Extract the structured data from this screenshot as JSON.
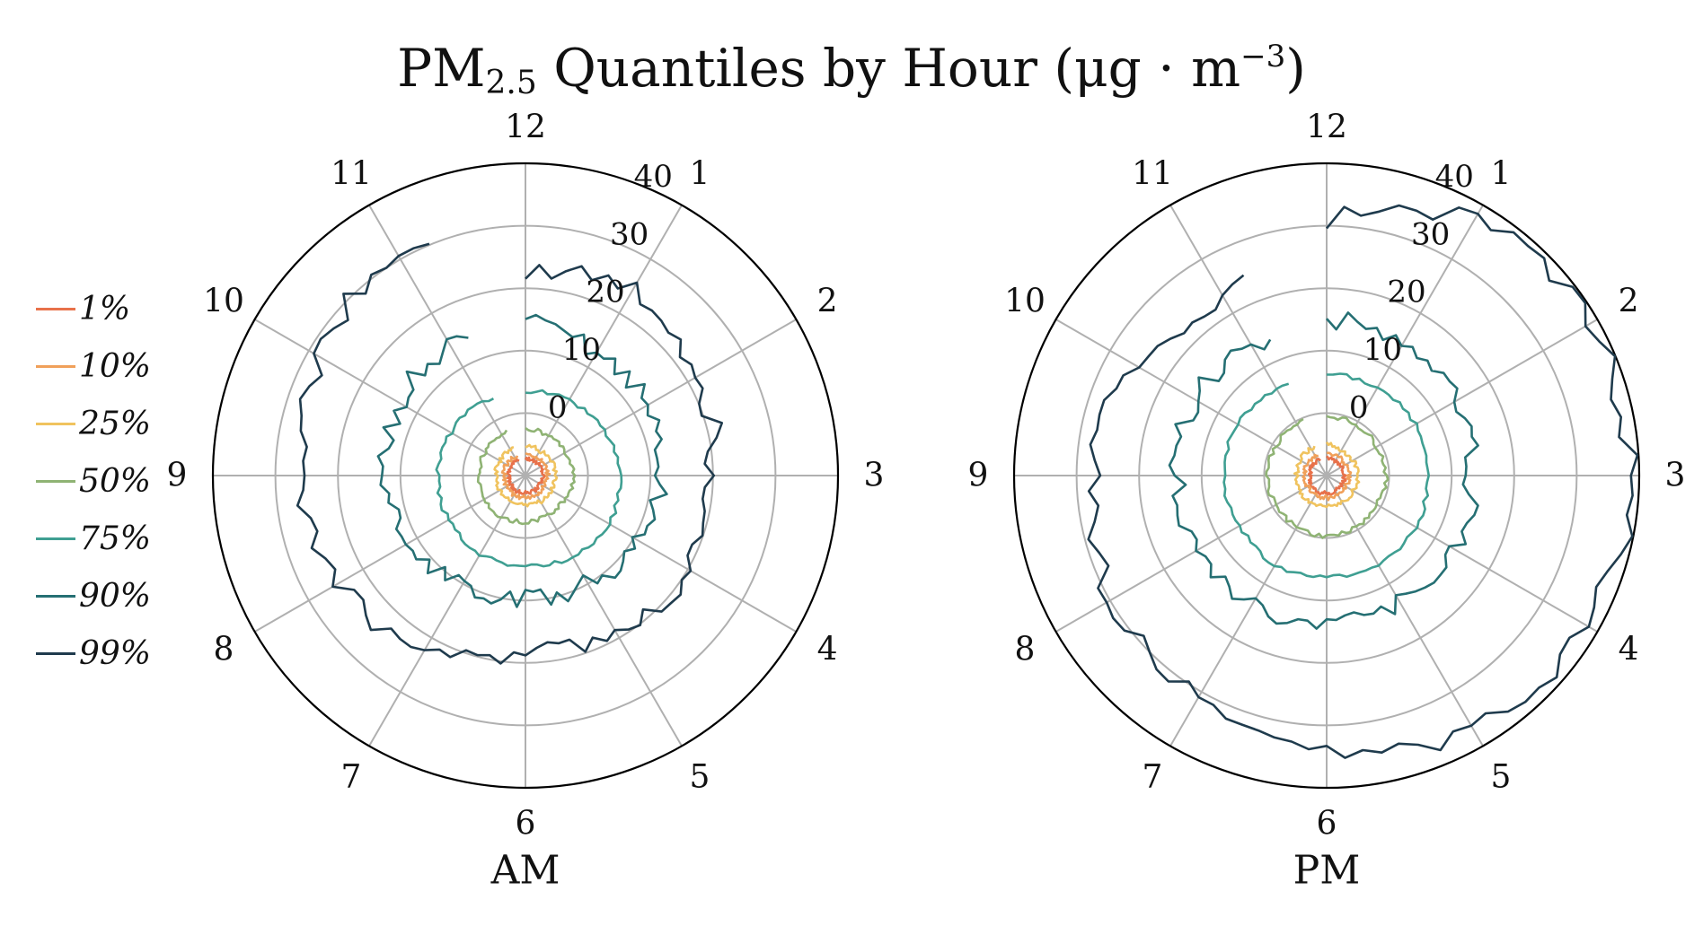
{
  "title": {
    "main": "PM",
    "sub": "2.5",
    "rest": " Quantiles by Hour (μg · m",
    "sup": "−3",
    "close": ")"
  },
  "chart_data": {
    "type": "line",
    "projection": "polar",
    "title": "PM2.5 Quantiles by Hour (μg · m−3)",
    "angular_tick_labels": [
      "12",
      "1",
      "2",
      "3",
      "4",
      "5",
      "6",
      "7",
      "8",
      "9",
      "10",
      "11"
    ],
    "radial_tick_labels": [
      "0",
      "10",
      "20",
      "30",
      "40"
    ],
    "rlim": [
      -10,
      40
    ],
    "grid": true,
    "legend_position": "left",
    "series_colors": [
      "#e8714a",
      "#f0a05a",
      "#f0c35e",
      "#8fb374",
      "#3f9f92",
      "#256f73",
      "#1f3b4d"
    ],
    "subplots": [
      {
        "xlabel": "AM",
        "series": [
          {
            "name": "1%",
            "values": [
              -7.2,
              -7.3,
              -7.2,
              -7.1,
              -7.3,
              -7.2,
              -7.2,
              -7.1,
              -7.2,
              -7.3,
              -7.2,
              -7.2
            ]
          },
          {
            "name": "10%",
            "values": [
              -6.5,
              -6.6,
              -6.5,
              -6.4,
              -6.6,
              -6.5,
              -6.5,
              -6.4,
              -6.5,
              -6.6,
              -6.5,
              -6.5
            ]
          },
          {
            "name": "25%",
            "values": [
              -5.2,
              -5.4,
              -5.3,
              -5.2,
              -5.3,
              -5.2,
              -5.3,
              -5.2,
              -5.2,
              -5.3,
              -5.3,
              -5.2
            ]
          },
          {
            "name": "50%",
            "values": [
              -2.5,
              -2.7,
              -2.5,
              -2.2,
              -2.6,
              -2.8,
              -2.6,
              -2.4,
              -2.3,
              -2.6,
              -2.5,
              -2.4
            ]
          },
          {
            "name": "75%",
            "values": [
              3.5,
              3.8,
              4.5,
              5.0,
              5.5,
              5.0,
              4.5,
              4.5,
              4.2,
              4.0,
              3.8,
              3.6
            ]
          },
          {
            "name": "90%",
            "values": [
              14.5,
              13.0,
              12.5,
              11.5,
              11.0,
              10.0,
              9.5,
              10.5,
              11.5,
              12.5,
              13.5,
              14.0
            ]
          },
          {
            "name": "99%",
            "values": [
              22.5,
              24.5,
              22.0,
              20.0,
              20.5,
              19.0,
              18.0,
              22.5,
              24.5,
              26.5,
              27.5,
              32.0
            ]
          }
        ]
      },
      {
        "xlabel": "PM",
        "series": [
          {
            "name": "1%",
            "values": [
              -7.2,
              -7.3,
              -7.2,
              -7.1,
              -7.3,
              -7.2,
              -7.2,
              -7.1,
              -7.2,
              -7.3,
              -7.2,
              -7.2
            ]
          },
          {
            "name": "10%",
            "values": [
              -6.4,
              -6.5,
              -6.5,
              -6.4,
              -6.5,
              -6.5,
              -6.4,
              -6.4,
              -6.5,
              -6.5,
              -6.4,
              -6.5
            ]
          },
          {
            "name": "25%",
            "values": [
              -5.0,
              -5.2,
              -5.2,
              -5.0,
              -5.1,
              -5.0,
              -5.1,
              -5.0,
              -5.1,
              -5.2,
              -5.1,
              -5.0
            ]
          },
          {
            "name": "50%",
            "values": [
              -0.5,
              -0.6,
              -0.7,
              -0.5,
              -0.7,
              -0.5,
              -0.3,
              -0.5,
              -0.6,
              -0.4,
              -0.6,
              -0.5
            ]
          },
          {
            "name": "75%",
            "values": [
              6.5,
              6.0,
              6.5,
              6.0,
              6.5,
              6.5,
              6.0,
              6.5,
              6.0,
              6.5,
              6.5,
              6.0
            ]
          },
          {
            "name": "90%",
            "values": [
              15.0,
              14.5,
              13.5,
              13.0,
              13.5,
              13.5,
              13.0,
              14.0,
              13.5,
              14.0,
              14.5,
              13.5
            ]
          },
          {
            "name": "99%",
            "values": [
              31.0,
              37.5,
              38.5,
              38.5,
              38.0,
              36.5,
              34.5,
              31.5,
              29.5,
              27.5,
              25.5,
              22.0
            ]
          }
        ]
      }
    ]
  }
}
